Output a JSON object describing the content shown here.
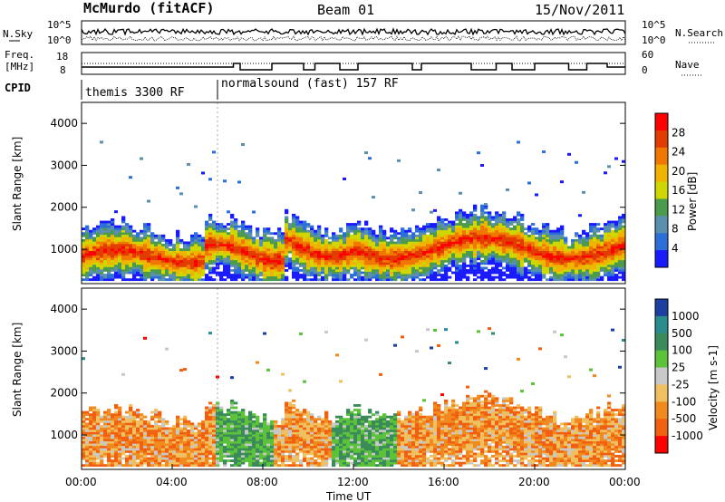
{
  "header": {
    "station": "McMurdo (fitACF)",
    "beam": "Beam 01",
    "date": "15/Nov/2011"
  },
  "nsky_panel": {
    "left_label": "N.Sky",
    "right_label": "N.Search",
    "left_ticks": [
      "10^5",
      "10^0"
    ],
    "right_ticks": [
      "10^5",
      "10^0"
    ]
  },
  "freq_panel": {
    "left_label_1": "Freq.",
    "left_label_2": "[MHz]",
    "right_label": "Nave",
    "left_ticks": [
      "18",
      "8"
    ],
    "right_ticks": [
      "60",
      "0"
    ]
  },
  "cpid": {
    "label": "CPID",
    "segments": [
      {
        "start_hour": 0,
        "end_hour": 6,
        "name": "themis 3300 RF"
      },
      {
        "start_hour": 6,
        "end_hour": 24,
        "name": "normalsound (fast) 157 RF"
      }
    ]
  },
  "x_axis": {
    "label": "Time UT",
    "ticks": [
      "00:00",
      "04:00",
      "08:00",
      "12:00",
      "16:00",
      "20:00",
      "00:00"
    ]
  },
  "chart_data": [
    {
      "type": "heatmap",
      "name": "power",
      "ylabel": "Slant Range [km]",
      "yticks": [
        "1000",
        "2000",
        "3000",
        "4000"
      ],
      "ylim": [
        180,
        4500
      ],
      "xlim_hours": [
        0,
        24
      ],
      "colorbar": {
        "label": "Power [dB]",
        "ticks": [
          "4",
          "8",
          "12",
          "16",
          "20",
          "24",
          "28"
        ],
        "colors": [
          "#1a1aff",
          "#2d6fd9",
          "#5b8fae",
          "#4c9a4c",
          "#cfd600",
          "#f0b400",
          "#f07800",
          "#e23c00",
          "#ff0000"
        ]
      }
    },
    {
      "type": "heatmap",
      "name": "velocity",
      "ylabel": "Slant Range [km]",
      "yticks": [
        "1000",
        "2000",
        "3000",
        "4000"
      ],
      "ylim": [
        180,
        4500
      ],
      "xlim_hours": [
        0,
        24
      ],
      "colorbar": {
        "label": "Velocity [m s-1]",
        "ticks": [
          "1000",
          "500",
          "100",
          "25",
          "-25",
          "-100",
          "-500",
          "-1000"
        ],
        "colors": [
          "#1d3fa0",
          "#2a8c8c",
          "#3a8a5a",
          "#5cc23a",
          "#c8c8c8",
          "#f0c060",
          "#f08a1e",
          "#f06010",
          "#ff0000"
        ]
      }
    }
  ]
}
